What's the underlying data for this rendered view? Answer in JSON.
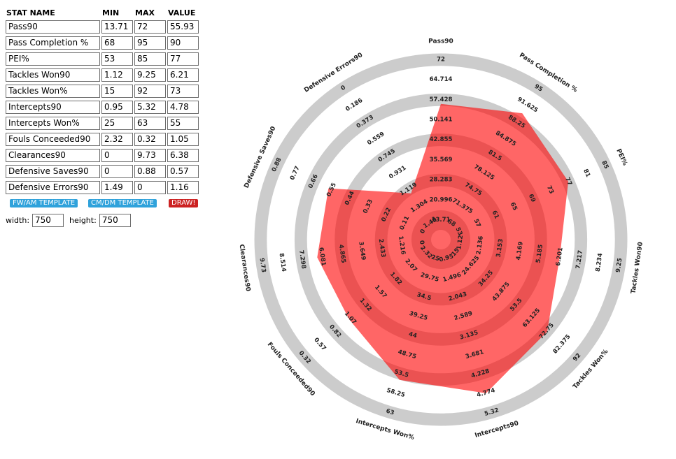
{
  "table": {
    "headers": [
      "STAT NAME",
      "MIN",
      "MAX",
      "VALUE"
    ],
    "rows": [
      {
        "name": "Pass90",
        "min": "13.71",
        "max": "72",
        "value": "55.93"
      },
      {
        "name": "Pass Completion %",
        "min": "68",
        "max": "95",
        "value": "90"
      },
      {
        "name": "PEI%",
        "min": "53",
        "max": "85",
        "value": "77"
      },
      {
        "name": "Tackles  Won90",
        "min": "1.12",
        "max": "9.25",
        "value": "6.21"
      },
      {
        "name": "Tackles  Won%",
        "min": "15",
        "max": "92",
        "value": "73"
      },
      {
        "name": "Intercepts90",
        "min": "0.95",
        "max": "5.32",
        "value": "4.78"
      },
      {
        "name": "Intercepts Won%",
        "min": "25",
        "max": "63",
        "value": "55"
      },
      {
        "name": "Fouls Conceeded90",
        "min": "2.32",
        "max": "0.32",
        "value": "1.05"
      },
      {
        "name": "Clearances90",
        "min": "0",
        "max": "9.73",
        "value": "6.38"
      },
      {
        "name": "Defensive Saves90",
        "min": "0",
        "max": "0.88",
        "value": "0.57"
      },
      {
        "name": "Defensive Errors90",
        "min": "1.49",
        "max": "0",
        "value": "1.16"
      }
    ]
  },
  "buttons": {
    "fw_am": "FW/AM TEMPLATE",
    "cm_dm": "CM/DM TEMPLATE",
    "draw": "DRAW!"
  },
  "dimensions": {
    "width_label": "width:",
    "width_value": "750",
    "height_label": "height:",
    "height_value": "750"
  },
  "colors": {
    "ring": "#cccccc",
    "polygon": "#ff0000",
    "button_blue": "#2fa2db",
    "button_red": "#cc2222"
  },
  "chart_data": {
    "type": "radar",
    "axes": [
      {
        "name": "Pass90",
        "ticks": [
          "13.71",
          "20.996",
          "28.283",
          "35.569",
          "42.855",
          "50.141",
          "57.428",
          "64.714",
          "72"
        ],
        "value": 55.93
      },
      {
        "name": "Pass Completion %",
        "ticks": [
          "68",
          "71.375",
          "74.75",
          "78.125",
          "81.5",
          "84.875",
          "88.25",
          "91.625",
          "95"
        ],
        "value": 90
      },
      {
        "name": "PEI%",
        "ticks": [
          "53",
          "57",
          "61",
          "65",
          "69",
          "73",
          "77",
          "81",
          "85"
        ],
        "value": 77
      },
      {
        "name": "Tackles  Won90",
        "ticks": [
          "1.12",
          "2.136",
          "3.153",
          "4.169",
          "5.185",
          "6.201",
          "7.217",
          "8.234",
          "9.25"
        ],
        "value": 6.21
      },
      {
        "name": "Tackles  Won%",
        "ticks": [
          "15",
          "24.625",
          "34.25",
          "43.875",
          "53.5",
          "63.125",
          "72.75",
          "82.375",
          "92"
        ],
        "value": 73
      },
      {
        "name": "Intercepts90",
        "ticks": [
          "0.95",
          "1.496",
          "2.043",
          "2.589",
          "3.135",
          "3.681",
          "4.228",
          "4.774",
          "5.32"
        ],
        "value": 4.78
      },
      {
        "name": "Intercepts Won%",
        "ticks": [
          "25",
          "29.75",
          "34.5",
          "39.25",
          "44",
          "48.75",
          "53.5",
          "58.25",
          "63"
        ],
        "value": 55
      },
      {
        "name": "Fouls Conceeded90",
        "ticks": [
          "2.32",
          "2.07",
          "1.82",
          "1.57",
          "1.32",
          "1.07",
          "0.82",
          "0.57",
          "0.32"
        ],
        "value": 1.05
      },
      {
        "name": "Clearances90",
        "ticks": [
          "0",
          "1.216",
          "2.433",
          "3.649",
          "4.865",
          "6.081",
          "7.298",
          "8.514",
          "9.73"
        ],
        "value": 6.38
      },
      {
        "name": "Defensive Saves90",
        "ticks": [
          "0",
          "0.11",
          "0.22",
          "0.33",
          "0.44",
          "0.55",
          "0.66",
          "0.77",
          "0.88"
        ],
        "value": 0.57
      },
      {
        "name": "Defensive Errors90",
        "ticks": [
          "1.49",
          "1.304",
          "1.119",
          "0.931",
          "0.745",
          "0.559",
          "0.373",
          "0.186",
          "0"
        ],
        "value": 1.16
      }
    ]
  }
}
